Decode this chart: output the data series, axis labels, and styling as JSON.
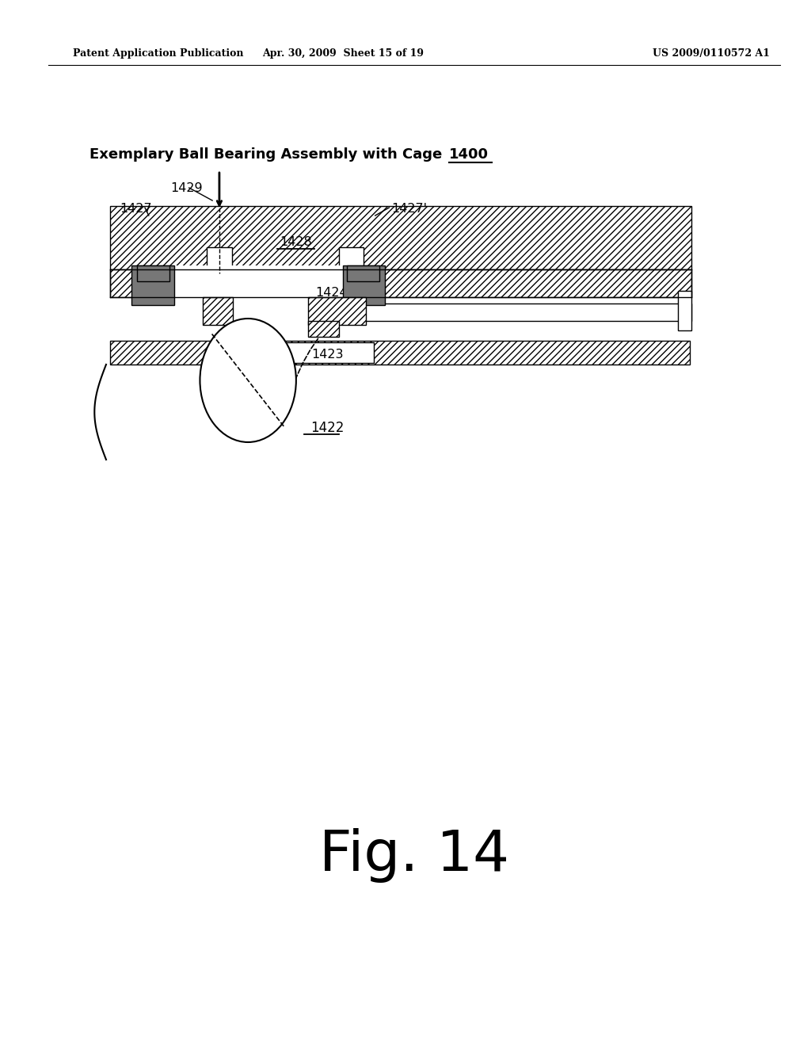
{
  "header_left": "Patent Application Publication",
  "header_mid": "Apr. 30, 2009  Sheet 15 of 19",
  "header_right": "US 2009/0110572 A1",
  "title_part1": "Exemplary Ball Bearing Assembly with Cage ",
  "title_part2": "1400",
  "fig_label": "Fig. 14",
  "background_color": "#ffffff",
  "hatch_color": "#000000",
  "dark_fill": "#777777",
  "line_color": "#000000"
}
